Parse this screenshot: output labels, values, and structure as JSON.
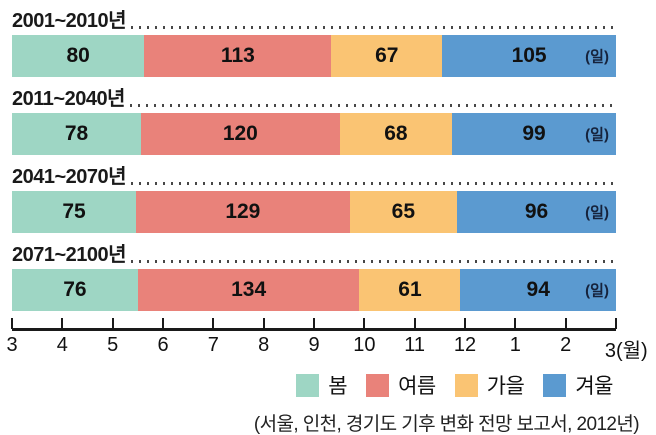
{
  "chart_data": {
    "type": "bar",
    "orientation": "horizontal-stacked",
    "title": "",
    "unit_label": "(일)",
    "total_days_per_row": 365,
    "seasons": [
      {
        "name": "봄",
        "color": "#9ed6c4"
      },
      {
        "name": "여름",
        "color": "#e9827a"
      },
      {
        "name": "가을",
        "color": "#fac473"
      },
      {
        "name": "겨울",
        "color": "#5b9ad0"
      }
    ],
    "rows": [
      {
        "period": "2001~2010년",
        "values": [
          80,
          113,
          67,
          105
        ]
      },
      {
        "period": "2011~2040년",
        "values": [
          78,
          120,
          68,
          99
        ]
      },
      {
        "period": "2041~2070년",
        "values": [
          75,
          129,
          65,
          96
        ]
      },
      {
        "period": "2071~2100년",
        "values": [
          76,
          134,
          61,
          94
        ]
      }
    ],
    "x_axis": {
      "tick_labels": [
        "3",
        "4",
        "5",
        "6",
        "7",
        "8",
        "9",
        "10",
        "11",
        "12",
        "1",
        "2",
        "3(월)"
      ],
      "range_months": 12
    },
    "legend_position": "bottom-right",
    "caption": "(서울, 인천, 경기도 기후 변화 전망 보고서, 2012년)"
  }
}
